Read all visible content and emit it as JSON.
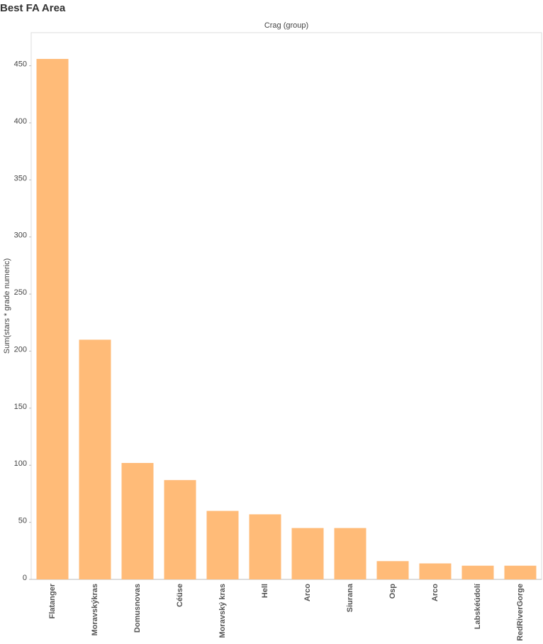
{
  "chart_data": {
    "type": "bar",
    "title": "Best FA Area",
    "x_label": "Crag  (group)",
    "y_label": "Sum(stars * grade numeric)",
    "categories": [
      "Flatanger",
      "Moravskýkras",
      "Domusnovas",
      "Céüse",
      "Moravský kras",
      "Hell",
      "Arco",
      "Siurana",
      "Osp",
      "Arco",
      "Labskéúdolí",
      "RedRiverGorge"
    ],
    "values": [
      456,
      210,
      102,
      87,
      60,
      57,
      45,
      45,
      16,
      14,
      12,
      12
    ],
    "color": "#ffbb78",
    "ylim": [
      0,
      479
    ],
    "yticks": [
      0,
      50,
      100,
      150,
      200,
      250,
      300,
      350,
      400,
      450
    ],
    "grid": false
  }
}
